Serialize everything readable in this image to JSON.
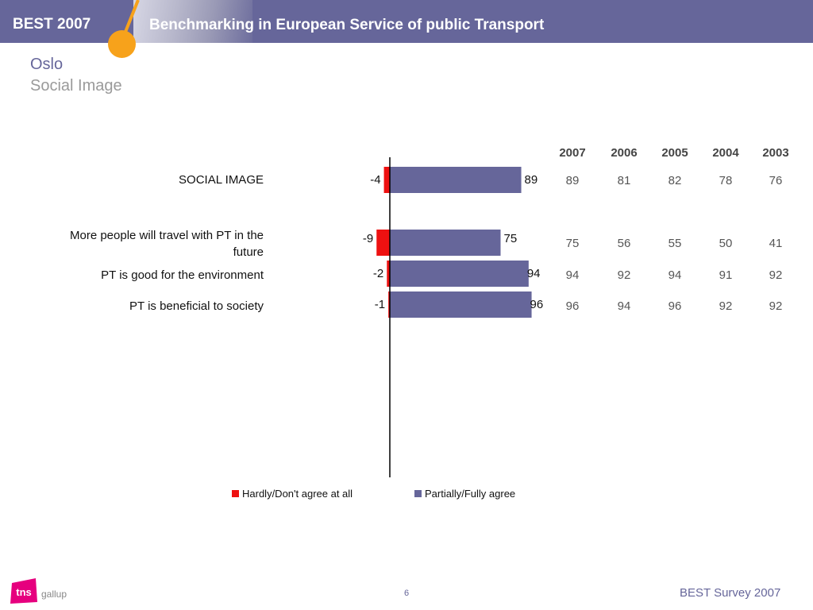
{
  "header": {
    "brand": "BEST 2007",
    "title": "Benchmarking in European Service of public Transport"
  },
  "page": {
    "title": "Oslo",
    "subtitle": "Social Image"
  },
  "colors": {
    "header_bg": "#66669a",
    "accent_orange": "#f7a21b",
    "negative": "#ee1111",
    "positive": "#66669a",
    "logo_pink": "#e6007e"
  },
  "chart_data": {
    "type": "bar",
    "orientation": "horizontal",
    "stacked": "diverging",
    "categories": [
      "SOCIAL IMAGE",
      "More people will travel with PT in the future",
      "PT is good for the environment",
      "PT is beneficial to society"
    ],
    "category_lines": [
      [
        "SOCIAL IMAGE"
      ],
      [
        "More people will travel with PT in the",
        "future"
      ],
      [
        "PT is good for the environment"
      ],
      [
        "PT is beneficial to society"
      ]
    ],
    "series": [
      {
        "name": "Hardly/Don't agree at all",
        "values": [
          -4,
          -9,
          -2,
          -1
        ],
        "labels": [
          "-4",
          "-9",
          "-2",
          "-1"
        ],
        "color": "#ee1111"
      },
      {
        "name": "Partially/Fully agree",
        "values": [
          89,
          75,
          94,
          96
        ],
        "labels": [
          "89",
          "75",
          "94",
          "96"
        ],
        "color": "#66669a"
      }
    ],
    "legend": "bottom",
    "grid": false
  },
  "year_table": {
    "headers": [
      "2007",
      "2006",
      "2005",
      "2004",
      "2003"
    ],
    "rows": [
      [
        "89",
        "81",
        "82",
        "78",
        "76"
      ],
      [
        "75",
        "56",
        "55",
        "50",
        "41"
      ],
      [
        "94",
        "92",
        "94",
        "91",
        "92"
      ],
      [
        "96",
        "94",
        "96",
        "92",
        "92"
      ]
    ]
  },
  "footer": {
    "page_number": "6",
    "right_text": "BEST Survey 2007",
    "logo_mark": "tns",
    "logo_text": "gallup"
  }
}
